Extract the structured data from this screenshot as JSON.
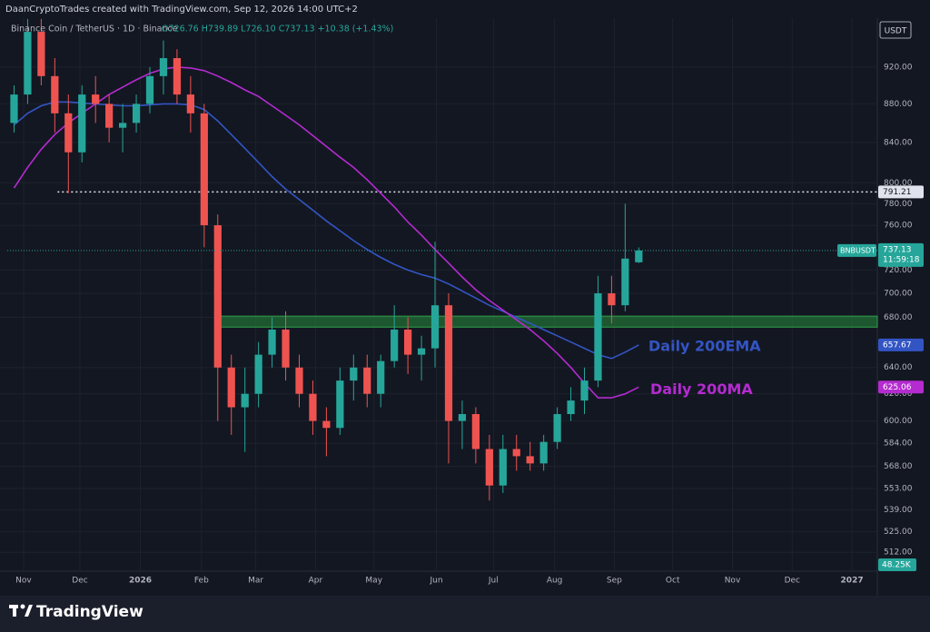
{
  "header": {
    "credit": "DaanCryptoTrades created with TradingView.com, Sep 12, 2026 14:00 UTC+2"
  },
  "chart_data": {
    "type": "candlestick",
    "symbol": "Binance Coin / TetherUS · 1D · Binance",
    "ohlc_text": "O726.76 H739.89 L726.10 C737.13 +10.38 (+1.43%)",
    "currency": "USDT",
    "ticker": "BNBUSDT",
    "countdown": "11:59:18",
    "volume_label": "48.25K",
    "brand": "TradingView",
    "log_scale": true,
    "grid": true,
    "up_color": "#26a69a",
    "down_color": "#ef5350",
    "ylim": [
      501,
      976
    ],
    "xlim": [
      -0.5,
      63.5
    ],
    "yticks": [
      {
        "value": 512,
        "label": "512.00"
      },
      {
        "value": 525,
        "label": "525.00"
      },
      {
        "value": 539,
        "label": "539.00"
      },
      {
        "value": 553,
        "label": "553.00"
      },
      {
        "value": 568,
        "label": "568.00"
      },
      {
        "value": 584,
        "label": "584.00"
      },
      {
        "value": 600,
        "label": "600.00"
      },
      {
        "value": 620,
        "label": "620.00"
      },
      {
        "value": 640,
        "label": "640.00"
      },
      {
        "value": 680,
        "label": "680.00"
      },
      {
        "value": 700,
        "label": "700.00"
      },
      {
        "value": 720,
        "label": "720.00"
      },
      {
        "value": 760,
        "label": "760.00"
      },
      {
        "value": 780,
        "label": "780.00"
      },
      {
        "value": 800,
        "label": "800.00"
      },
      {
        "value": 840,
        "label": "840.00"
      },
      {
        "value": 880,
        "label": "880.00"
      },
      {
        "value": 920,
        "label": "920.00"
      }
    ],
    "xticks": [
      {
        "value": 0.7,
        "label": "Nov"
      },
      {
        "value": 4.85,
        "label": "Dec"
      },
      {
        "value": 9.3,
        "label": "2026"
      },
      {
        "value": 13.8,
        "label": "Feb"
      },
      {
        "value": 17.8,
        "label": "Mar"
      },
      {
        "value": 22.2,
        "label": "Apr"
      },
      {
        "value": 26.5,
        "label": "May"
      },
      {
        "value": 31.1,
        "label": "Jun"
      },
      {
        "value": 35.3,
        "label": "Jul"
      },
      {
        "value": 39.8,
        "label": "Aug"
      },
      {
        "value": 44.2,
        "label": "Sep"
      },
      {
        "value": 48.5,
        "label": "Oct"
      },
      {
        "value": 52.9,
        "label": "Nov"
      },
      {
        "value": 57.3,
        "label": "Dec"
      },
      {
        "value": 61.7,
        "label": "2027"
      }
    ],
    "open": [
      860,
      890,
      960,
      910,
      870,
      830,
      890,
      880,
      855,
      860,
      880,
      910,
      930,
      890,
      870,
      760,
      640,
      610,
      620,
      650,
      670,
      640,
      620,
      600,
      595,
      630,
      640,
      620,
      645,
      670,
      650,
      655,
      690,
      600,
      605,
      580,
      555,
      580,
      575,
      570,
      585,
      605,
      615,
      630,
      700,
      690,
      726.76
    ],
    "high": [
      900,
      975,
      975,
      930,
      890,
      900,
      910,
      890,
      880,
      890,
      920,
      950,
      940,
      910,
      880,
      770,
      650,
      640,
      660,
      680,
      685,
      650,
      630,
      610,
      640,
      650,
      650,
      650,
      690,
      680,
      665,
      745,
      700,
      615,
      610,
      590,
      590,
      590,
      585,
      590,
      610,
      625,
      640,
      715,
      715,
      780,
      739.89
    ],
    "low": [
      850,
      880,
      900,
      850,
      790,
      820,
      860,
      840,
      830,
      850,
      870,
      890,
      880,
      850,
      740,
      600,
      590,
      578,
      610,
      640,
      630,
      610,
      590,
      575,
      590,
      615,
      610,
      610,
      640,
      635,
      630,
      640,
      570,
      580,
      570,
      545,
      550,
      565,
      565,
      565,
      580,
      600,
      605,
      625,
      675,
      685,
      726.1
    ],
    "close": [
      890,
      960,
      910,
      870,
      830,
      890,
      880,
      855,
      860,
      880,
      910,
      930,
      890,
      870,
      760,
      640,
      610,
      620,
      650,
      670,
      640,
      620,
      600,
      595,
      630,
      640,
      620,
      645,
      670,
      650,
      655,
      690,
      600,
      605,
      580,
      555,
      580,
      575,
      570,
      585,
      605,
      615,
      630,
      700,
      690,
      730,
      737.13
    ],
    "series": [
      {
        "name": "Daily 200EMA",
        "color": "#3355c4",
        "values": [
          858,
          870,
          878,
          882,
          882,
          881,
          880,
          879,
          878,
          878,
          879,
          880,
          880,
          879,
          874,
          862,
          848,
          834,
          820,
          806,
          794,
          784,
          774,
          764,
          755,
          746,
          738,
          731,
          725,
          720,
          716,
          713,
          708,
          702,
          696,
          690,
          685,
          680,
          675,
          670,
          665,
          660,
          655,
          650,
          647,
          652,
          657.67
        ]
      },
      {
        "name": "Daily 200MA",
        "color": "#b42bd0",
        "values": [
          795,
          815,
          833,
          848,
          860,
          870,
          880,
          890,
          898,
          906,
          913,
          918,
          920,
          919,
          916,
          910,
          903,
          895,
          888,
          878,
          868,
          858,
          847,
          836,
          825,
          815,
          803,
          790,
          777,
          763,
          751,
          738,
          726,
          714,
          703,
          694,
          686,
          678,
          670,
          661,
          651,
          640,
          628,
          617,
          617,
          620,
          625.06
        ]
      }
    ],
    "level": 791.21,
    "zone": [
      672,
      681
    ]
  }
}
